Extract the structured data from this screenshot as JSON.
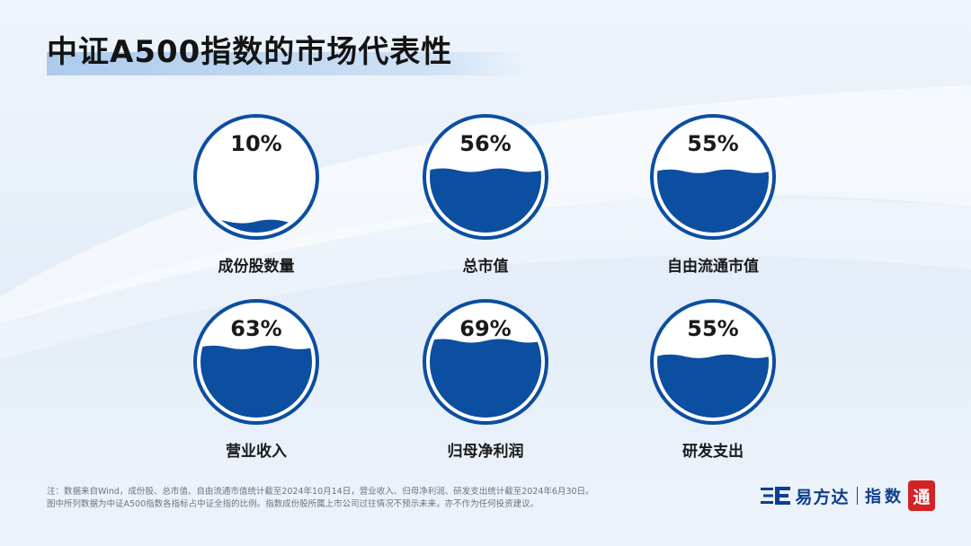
{
  "title": "中证A500指数的市场代表性",
  "gauges": [
    {
      "label": "成份股数量",
      "percent_text": "10%",
      "value": 0.1
    },
    {
      "label": "总市值",
      "percent_text": "56%",
      "value": 0.56
    },
    {
      "label": "自由流通市值",
      "percent_text": "55%",
      "value": 0.55
    },
    {
      "label": "营业收入",
      "percent_text": "63%",
      "value": 0.63
    },
    {
      "label": "归母净利润",
      "percent_text": "69%",
      "value": 0.69
    },
    {
      "label": "研发支出",
      "percent_text": "55%",
      "value": 0.55
    }
  ],
  "footnote": {
    "line1": "注：数据来自Wind，成份股、总市值、自由流通市值统计截至2024年10月14日，营业收入、归母净利润、研发支出统计截至2024年6月30日。",
    "line2": "图中所列数据为中证A500指数各指标占中证全指的比例。指数成份股所属上市公司过往情况不预示未来，亦不作为任何投资建议。"
  },
  "brand": {
    "name": "易方达",
    "sub": "指数",
    "seal": "通"
  },
  "colors": {
    "fill": "#0c4ea0",
    "ring": "#0c4ea0",
    "title_bar": "#8ab8e8"
  }
}
